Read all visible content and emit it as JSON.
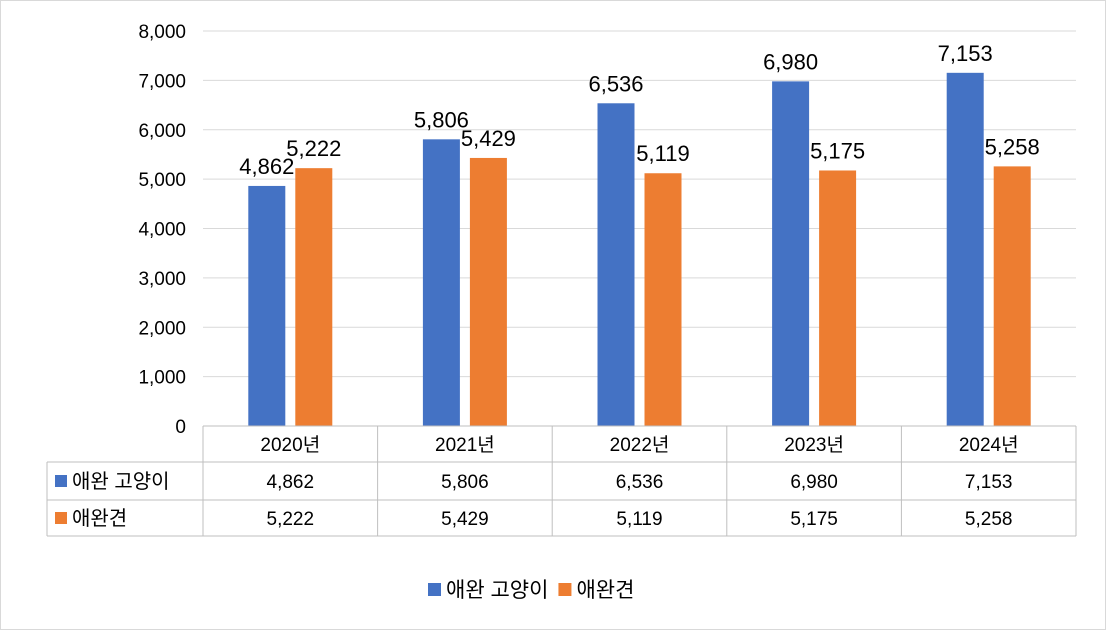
{
  "chart_data": {
    "type": "bar",
    "title": "",
    "xlabel": "",
    "ylabel": "",
    "ylim": [
      0,
      8000
    ],
    "yticks": [
      "0",
      "1,000",
      "2,000",
      "3,000",
      "4,000",
      "5,000",
      "6,000",
      "7,000",
      "8,000"
    ],
    "categories": [
      "2020년",
      "2021년",
      "2022년",
      "2023년",
      "2024년"
    ],
    "series": [
      {
        "name": "애완 고양이",
        "color": "#4472C4",
        "values": [
          4862,
          5806,
          6536,
          6980,
          7153
        ],
        "labels": [
          "4,862",
          "5,806",
          "6,536",
          "6,980",
          "7,153"
        ]
      },
      {
        "name": "애완견",
        "color": "#ED7D31",
        "values": [
          5222,
          5429,
          5119,
          5175,
          5258
        ],
        "labels": [
          "5,222",
          "5,429",
          "5,119",
          "5,175",
          "5,258"
        ]
      }
    ],
    "grid": true,
    "legend": "bottom-center",
    "data_table": true
  }
}
